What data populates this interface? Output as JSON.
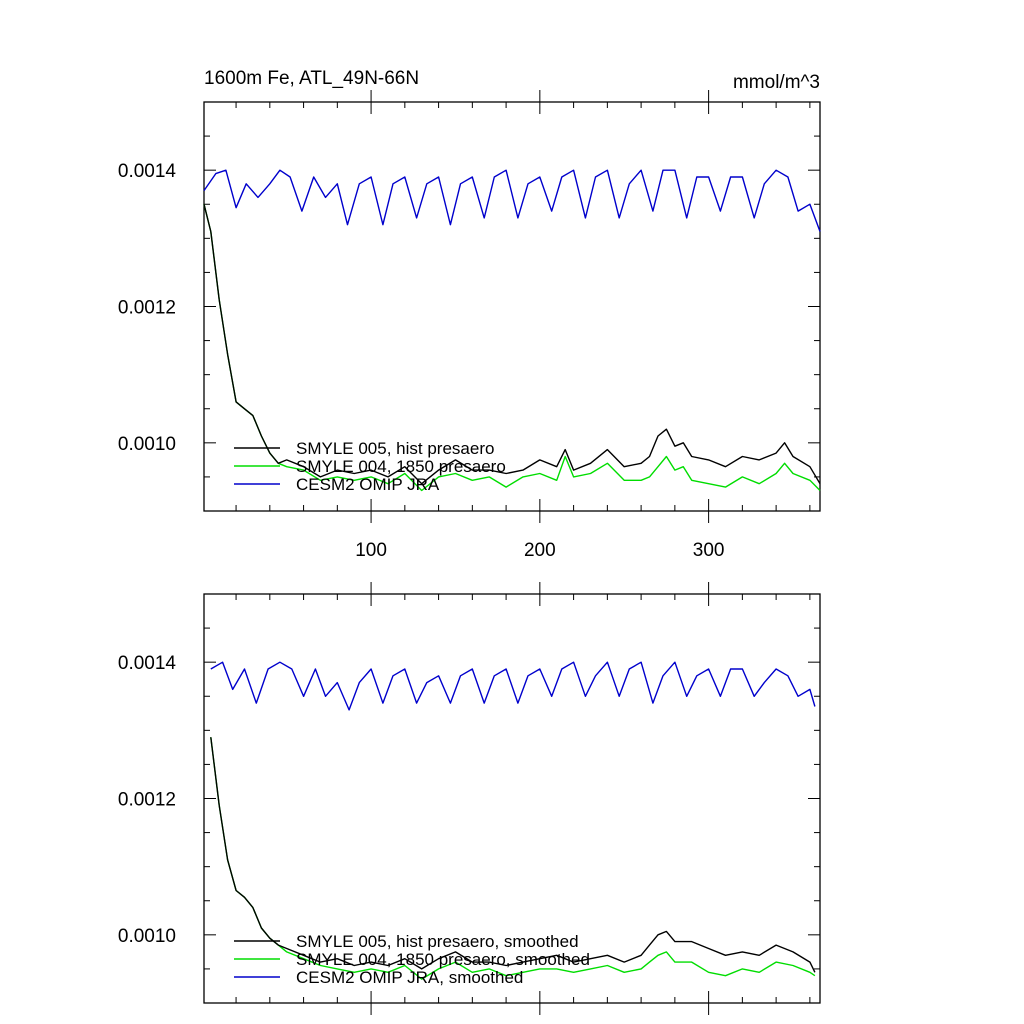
{
  "figure": {
    "title": "1600m Fe, ATL_49N-66N",
    "units": "mmol/m^3"
  },
  "chart_data": [
    {
      "type": "line",
      "title": "1600m Fe, ATL_49N-66N",
      "units": "mmol/m^3",
      "xlabel": "",
      "ylabel": "",
      "xlim": [
        1,
        366
      ],
      "ylim": [
        0.0009,
        0.0015
      ],
      "xticks": [
        100,
        200,
        300
      ],
      "yticks": [
        "0.0010",
        "0.0012",
        "0.0014"
      ],
      "grid": false,
      "legend": "bottom-left",
      "series": [
        {
          "name": "SMYLE 005, hist presaero",
          "color": "#000000",
          "x": [
            1,
            5,
            10,
            15,
            20,
            25,
            30,
            35,
            40,
            45,
            50,
            60,
            70,
            80,
            90,
            100,
            110,
            120,
            130,
            140,
            150,
            160,
            170,
            180,
            190,
            200,
            210,
            215,
            220,
            230,
            240,
            250,
            260,
            265,
            270,
            275,
            280,
            285,
            290,
            300,
            310,
            320,
            330,
            340,
            345,
            350,
            360,
            366
          ],
          "values": [
            0.00135,
            0.00131,
            0.00121,
            0.00113,
            0.00106,
            0.00105,
            0.00104,
            0.00101,
            0.000985,
            0.00097,
            0.000975,
            0.000965,
            0.00095,
            0.00096,
            0.000955,
            0.00096,
            0.00095,
            0.000965,
            0.00094,
            0.00096,
            0.000975,
            0.00096,
            0.00096,
            0.000955,
            0.00096,
            0.000975,
            0.000965,
            0.00099,
            0.00096,
            0.00097,
            0.00099,
            0.000965,
            0.00097,
            0.00098,
            0.00101,
            0.00102,
            0.000995,
            0.001,
            0.00098,
            0.000975,
            0.000965,
            0.00098,
            0.000975,
            0.000985,
            0.001,
            0.00098,
            0.000965,
            0.00094
          ]
        },
        {
          "name": "SMYLE 004, 1850 presaero",
          "color": "#00dd00",
          "x": [
            1,
            5,
            10,
            15,
            20,
            25,
            30,
            35,
            40,
            45,
            50,
            60,
            70,
            80,
            90,
            100,
            110,
            120,
            130,
            140,
            150,
            160,
            170,
            180,
            190,
            200,
            210,
            215,
            220,
            230,
            240,
            250,
            260,
            265,
            270,
            275,
            280,
            285,
            290,
            300,
            310,
            320,
            330,
            340,
            345,
            350,
            360,
            366
          ],
          "values": [
            0.00135,
            0.00131,
            0.00121,
            0.00113,
            0.00106,
            0.00105,
            0.00104,
            0.00101,
            0.000985,
            0.00097,
            0.000965,
            0.00096,
            0.000945,
            0.00095,
            0.000945,
            0.00095,
            0.00094,
            0.000955,
            0.00093,
            0.00095,
            0.000955,
            0.000945,
            0.00095,
            0.000935,
            0.00095,
            0.000955,
            0.000945,
            0.00098,
            0.00095,
            0.000955,
            0.00097,
            0.000945,
            0.000945,
            0.00095,
            0.000965,
            0.00098,
            0.00096,
            0.000965,
            0.000945,
            0.00094,
            0.000935,
            0.00095,
            0.00094,
            0.000955,
            0.00097,
            0.000955,
            0.000945,
            0.00093
          ]
        },
        {
          "name": "CESM2 OMIP JRA",
          "color": "#0000cc",
          "x": [
            1,
            8,
            14,
            20,
            26,
            33,
            40,
            46,
            52,
            59,
            66,
            73,
            80,
            86,
            93,
            100,
            107,
            113,
            120,
            127,
            133,
            140,
            147,
            153,
            160,
            167,
            173,
            180,
            187,
            193,
            200,
            207,
            213,
            220,
            227,
            233,
            240,
            247,
            253,
            260,
            267,
            273,
            280,
            287,
            293,
            300,
            307,
            313,
            320,
            327,
            333,
            340,
            347,
            353,
            360,
            366
          ],
          "values": [
            0.00137,
            0.001395,
            0.0014,
            0.001345,
            0.00138,
            0.00136,
            0.00138,
            0.0014,
            0.00139,
            0.00134,
            0.00139,
            0.00136,
            0.00138,
            0.00132,
            0.00138,
            0.00139,
            0.00132,
            0.00138,
            0.00139,
            0.00133,
            0.00138,
            0.00139,
            0.00132,
            0.00138,
            0.00139,
            0.00133,
            0.00139,
            0.0014,
            0.00133,
            0.00138,
            0.00139,
            0.00134,
            0.00139,
            0.0014,
            0.00133,
            0.00139,
            0.0014,
            0.00133,
            0.00138,
            0.0014,
            0.00134,
            0.0014,
            0.0014,
            0.00133,
            0.00139,
            0.00139,
            0.00134,
            0.00139,
            0.00139,
            0.00133,
            0.00138,
            0.0014,
            0.00139,
            0.00134,
            0.00135,
            0.00131
          ]
        }
      ]
    },
    {
      "type": "line",
      "title": "",
      "xlabel": "",
      "ylabel": "",
      "xlim": [
        1,
        366
      ],
      "ylim": [
        0.0009,
        0.0015
      ],
      "xticks": [
        100,
        200,
        300
      ],
      "yticks": [
        "0.0010",
        "0.0012",
        "0.0014"
      ],
      "grid": false,
      "legend": "bottom-left",
      "series": [
        {
          "name": "SMYLE 005, hist presaero, smoothed",
          "color": "#000000",
          "x": [
            5,
            10,
            15,
            20,
            25,
            30,
            35,
            40,
            45,
            50,
            60,
            70,
            80,
            90,
            100,
            110,
            120,
            130,
            140,
            150,
            160,
            170,
            180,
            190,
            200,
            210,
            220,
            230,
            240,
            250,
            260,
            265,
            270,
            275,
            280,
            290,
            300,
            310,
            320,
            330,
            340,
            350,
            360,
            363
          ],
          "values": [
            0.00129,
            0.00119,
            0.00111,
            0.001065,
            0.001055,
            0.00104,
            0.00101,
            0.000995,
            0.000985,
            0.00098,
            0.00097,
            0.00096,
            0.000965,
            0.000955,
            0.00096,
            0.000955,
            0.000965,
            0.00095,
            0.000965,
            0.000975,
            0.00096,
            0.00096,
            0.000955,
            0.00096,
            0.000965,
            0.00097,
            0.00096,
            0.000965,
            0.00097,
            0.00096,
            0.00097,
            0.000985,
            0.001,
            0.001005,
            0.00099,
            0.00099,
            0.00098,
            0.00097,
            0.000975,
            0.00097,
            0.000985,
            0.000975,
            0.00096,
            0.000945
          ]
        },
        {
          "name": "SMYLE 004, 1850 presaero, smoothed",
          "color": "#00dd00",
          "x": [
            5,
            10,
            15,
            20,
            25,
            30,
            35,
            40,
            45,
            50,
            60,
            70,
            80,
            90,
            100,
            110,
            120,
            130,
            140,
            150,
            160,
            170,
            180,
            190,
            200,
            210,
            220,
            230,
            240,
            250,
            260,
            265,
            270,
            275,
            280,
            290,
            300,
            310,
            320,
            330,
            340,
            350,
            360,
            363
          ],
          "values": [
            0.00129,
            0.00119,
            0.00111,
            0.001065,
            0.001055,
            0.00104,
            0.00101,
            0.000995,
            0.000985,
            0.000975,
            0.000965,
            0.000955,
            0.00095,
            0.000945,
            0.00095,
            0.000945,
            0.000955,
            0.000935,
            0.00095,
            0.00096,
            0.000945,
            0.00095,
            0.00094,
            0.000945,
            0.00095,
            0.00095,
            0.000945,
            0.00095,
            0.000955,
            0.000945,
            0.00095,
            0.00096,
            0.00097,
            0.000975,
            0.00096,
            0.00096,
            0.000945,
            0.00094,
            0.00095,
            0.000945,
            0.00096,
            0.000955,
            0.000945,
            0.00094
          ]
        },
        {
          "name": "CESM2 OMIP JRA, smoothed",
          "color": "#0000cc",
          "x": [
            5,
            12,
            18,
            25,
            32,
            39,
            46,
            53,
            60,
            67,
            73,
            80,
            87,
            93,
            100,
            107,
            113,
            120,
            127,
            133,
            140,
            147,
            153,
            160,
            167,
            173,
            180,
            187,
            193,
            200,
            207,
            213,
            220,
            227,
            233,
            240,
            247,
            253,
            260,
            267,
            273,
            280,
            287,
            293,
            300,
            307,
            313,
            320,
            327,
            333,
            340,
            347,
            353,
            360,
            363
          ],
          "values": [
            0.00139,
            0.0014,
            0.00136,
            0.00139,
            0.00134,
            0.00139,
            0.0014,
            0.00139,
            0.00135,
            0.00139,
            0.00135,
            0.00137,
            0.00133,
            0.00137,
            0.00139,
            0.00134,
            0.00138,
            0.00139,
            0.00134,
            0.00137,
            0.00138,
            0.00134,
            0.00138,
            0.00139,
            0.00134,
            0.00138,
            0.00139,
            0.00134,
            0.00138,
            0.00139,
            0.00135,
            0.00139,
            0.0014,
            0.00135,
            0.00138,
            0.0014,
            0.00135,
            0.00139,
            0.0014,
            0.00134,
            0.00138,
            0.0014,
            0.00135,
            0.00138,
            0.00139,
            0.00135,
            0.00139,
            0.00139,
            0.00135,
            0.00137,
            0.00139,
            0.00138,
            0.00135,
            0.00136,
            0.001335
          ]
        }
      ]
    }
  ]
}
